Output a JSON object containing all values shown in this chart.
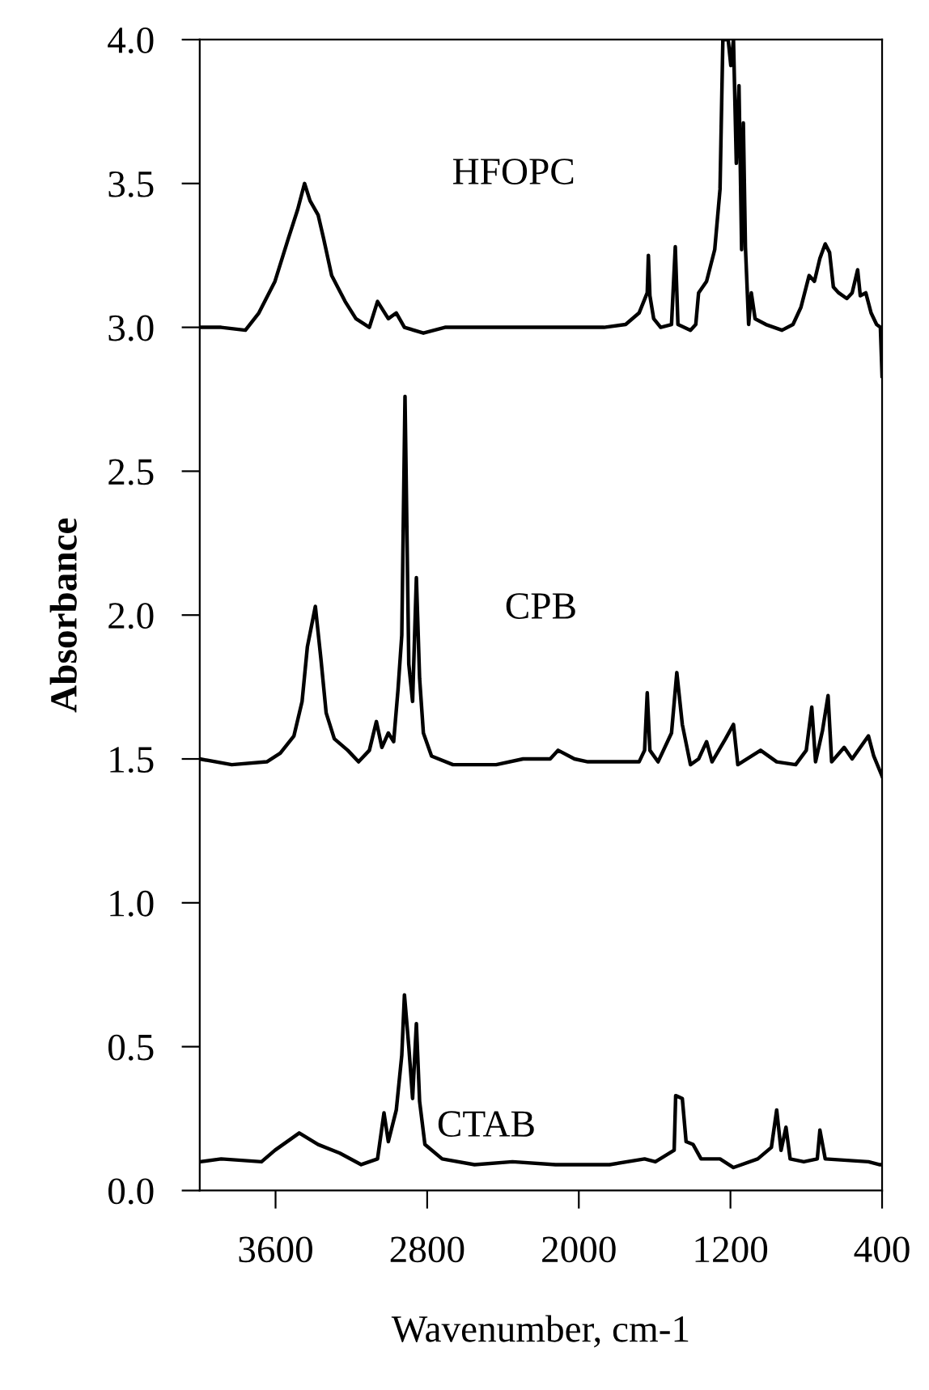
{
  "chart_data": {
    "type": "line",
    "xlabel": "Wavenumber, cm-1",
    "ylabel": "Absorbance",
    "xlim": [
      4000,
      400
    ],
    "xticks": [
      3600,
      2800,
      2000,
      1200,
      400
    ],
    "ylim": [
      0,
      4
    ],
    "yticks": [
      {
        "value": 0,
        "label": "0.0"
      },
      0.5,
      {
        "value": 1,
        "label": "1.0"
      },
      1.5,
      {
        "value": 2,
        "label": "2.0"
      },
      2.5,
      {
        "value": 3,
        "label": "3.0"
      },
      3.5,
      {
        "value": 4,
        "label": "4.0"
      }
    ],
    "grid": false,
    "legend": false,
    "marker": "none",
    "line_style": "solid",
    "series": [
      {
        "name": "HFOPC",
        "color": "#000000",
        "x": [
          4000,
          3887,
          3759,
          3688,
          3603,
          3532,
          3483,
          3447,
          3418,
          3375,
          3347,
          3304,
          3233,
          3176,
          3105,
          3062,
          3005,
          2963,
          2920,
          2820,
          2706,
          2649,
          2151,
          1867,
          1753,
          1682,
          1639,
          1633,
          1625,
          1605,
          1568,
          1511,
          1491,
          1477,
          1411,
          1383,
          1368,
          1326,
          1283,
          1255,
          1240,
          1212,
          1198,
          1184,
          1169,
          1155,
          1141,
          1132,
          1121,
          1104,
          1090,
          1070,
          1013,
          928,
          870,
          828,
          785,
          757,
          728,
          700,
          677,
          657,
          629,
          586,
          558,
          529,
          515,
          486,
          458,
          429,
          409,
          400
        ],
        "values": [
          3.0,
          3.0,
          2.99,
          3.05,
          3.16,
          3.31,
          3.41,
          3.5,
          3.44,
          3.39,
          3.31,
          3.18,
          3.09,
          3.03,
          3.0,
          3.09,
          3.03,
          3.05,
          3.0,
          2.98,
          3.0,
          3.0,
          3.0,
          3.0,
          3.01,
          3.05,
          3.12,
          3.25,
          3.11,
          3.03,
          3.0,
          3.01,
          3.28,
          3.01,
          2.99,
          3.01,
          3.12,
          3.16,
          3.27,
          3.48,
          4.0,
          4.0,
          3.91,
          4.0,
          3.57,
          3.84,
          3.27,
          3.71,
          3.28,
          3.01,
          3.12,
          3.03,
          3.01,
          2.99,
          3.01,
          3.07,
          3.18,
          3.16,
          3.24,
          3.29,
          3.26,
          3.14,
          3.12,
          3.1,
          3.12,
          3.2,
          3.11,
          3.12,
          3.05,
          3.01,
          3.0,
          2.83
        ]
      },
      {
        "name": "CPB",
        "color": "#000000",
        "x": [
          4000,
          3831,
          3646,
          3575,
          3503,
          3460,
          3432,
          3390,
          3361,
          3333,
          3290,
          3219,
          3162,
          3105,
          3068,
          3039,
          3005,
          2977,
          2954,
          2934,
          2917,
          2897,
          2877,
          2857,
          2840,
          2820,
          2777,
          2664,
          2436,
          2294,
          2151,
          2109,
          2023,
          1952,
          1682,
          1653,
          1639,
          1625,
          1582,
          1511,
          1483,
          1454,
          1411,
          1368,
          1326,
          1297,
          1226,
          1184,
          1161,
          1041,
          956,
          856,
          800,
          771,
          751,
          714,
          685,
          666,
          600,
          558,
          472,
          444,
          400
        ],
        "values": [
          1.5,
          1.48,
          1.49,
          1.52,
          1.58,
          1.7,
          1.89,
          2.03,
          1.85,
          1.66,
          1.57,
          1.53,
          1.49,
          1.53,
          1.63,
          1.54,
          1.59,
          1.56,
          1.74,
          1.93,
          2.76,
          1.83,
          1.7,
          2.13,
          1.78,
          1.59,
          1.51,
          1.48,
          1.48,
          1.5,
          1.5,
          1.53,
          1.5,
          1.49,
          1.49,
          1.53,
          1.73,
          1.53,
          1.49,
          1.59,
          1.8,
          1.62,
          1.48,
          1.5,
          1.56,
          1.49,
          1.57,
          1.62,
          1.48,
          1.53,
          1.49,
          1.48,
          1.53,
          1.68,
          1.49,
          1.6,
          1.72,
          1.49,
          1.54,
          1.5,
          1.58,
          1.51,
          1.44
        ]
      },
      {
        "name": "CTAB",
        "color": "#000000",
        "x": [
          4000,
          3887,
          3674,
          3603,
          3475,
          3375,
          3261,
          3148,
          3062,
          3028,
          3005,
          2963,
          2934,
          2920,
          2897,
          2877,
          2857,
          2840,
          2812,
          2721,
          2550,
          2350,
          2123,
          1838,
          1653,
          1596,
          1497,
          1489,
          1454,
          1434,
          1397,
          1355,
          1255,
          1184,
          1056,
          984,
          956,
          933,
          907,
          885,
          813,
          742,
          728,
          700,
          472,
          415,
          400
        ],
        "values": [
          0.1,
          0.11,
          0.1,
          0.14,
          0.2,
          0.16,
          0.13,
          0.09,
          0.11,
          0.27,
          0.17,
          0.28,
          0.47,
          0.68,
          0.5,
          0.32,
          0.58,
          0.31,
          0.16,
          0.11,
          0.09,
          0.1,
          0.09,
          0.09,
          0.11,
          0.1,
          0.14,
          0.33,
          0.32,
          0.17,
          0.16,
          0.11,
          0.11,
          0.08,
          0.11,
          0.15,
          0.28,
          0.14,
          0.22,
          0.11,
          0.1,
          0.11,
          0.21,
          0.11,
          0.1,
          0.09,
          0.09
        ]
      }
    ]
  }
}
